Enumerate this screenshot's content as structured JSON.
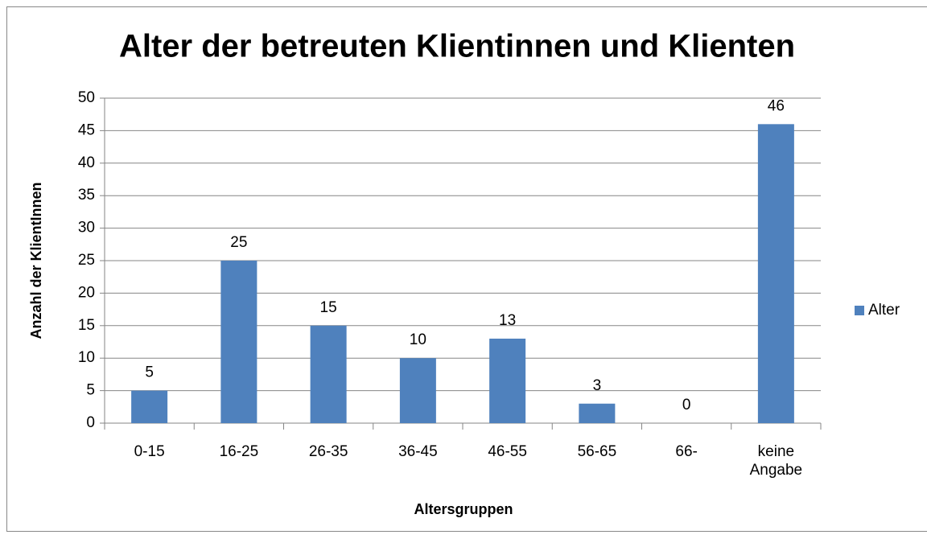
{
  "chart_data": {
    "type": "bar",
    "title": "Alter der betreuten Klientinnen und Klienten",
    "x_label": "Altersgruppen",
    "y_label": "Anzahl der KlientInnen",
    "categories": [
      "0-15",
      "16-25",
      "26-35",
      "36-45",
      "46-55",
      "56-65",
      "66-",
      "keine Angabe"
    ],
    "series": [
      {
        "name": "Alter",
        "color": "#4f81bd",
        "values": [
          5,
          25,
          15,
          10,
          13,
          3,
          0,
          46
        ]
      }
    ],
    "ylim": [
      0,
      50
    ],
    "yticks": [
      0,
      5,
      10,
      15,
      20,
      25,
      30,
      35,
      40,
      45,
      50
    ],
    "grid": true,
    "legend": "right",
    "data_labels": true
  }
}
